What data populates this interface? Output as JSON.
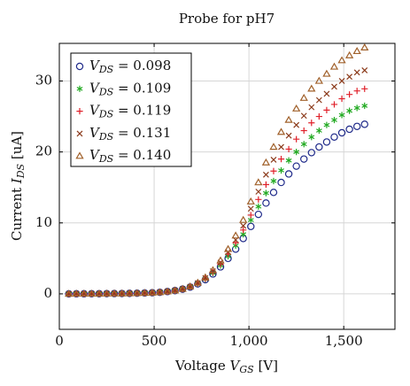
{
  "chart_data": {
    "type": "scatter",
    "title": "Probe for pH7",
    "x_label": "Voltage VGS [V]",
    "y_label": "Current IDS [uA]",
    "x": [
      50,
      90,
      130,
      170,
      210,
      250,
      290,
      330,
      370,
      410,
      450,
      490,
      530,
      570,
      610,
      650,
      690,
      730,
      770,
      810,
      850,
      890,
      930,
      970,
      1010,
      1050,
      1090,
      1130,
      1170,
      1210,
      1250,
      1290,
      1330,
      1370,
      1410,
      1450,
      1490,
      1530,
      1570,
      1610
    ],
    "series": [
      {
        "name": "VDS = 0.098",
        "color": "#1f2a8a",
        "marker": "circle",
        "values": [
          0,
          0.01,
          0.01,
          0.02,
          0.02,
          0.03,
          0.04,
          0.05,
          0.07,
          0.09,
          0.12,
          0.16,
          0.22,
          0.32,
          0.46,
          0.66,
          0.95,
          1.4,
          2.0,
          2.8,
          3.8,
          5.0,
          6.3,
          7.8,
          9.5,
          11.2,
          12.8,
          14.3,
          15.7,
          16.9,
          18.0,
          19.0,
          19.9,
          20.7,
          21.4,
          22.1,
          22.7,
          23.2,
          23.6,
          23.9
        ]
      },
      {
        "name": "VDS = 0.109",
        "color": "#22aa22",
        "marker": "star",
        "values": [
          0,
          0.01,
          0.01,
          0.02,
          0.02,
          0.03,
          0.04,
          0.05,
          0.07,
          0.09,
          0.12,
          0.16,
          0.22,
          0.32,
          0.46,
          0.67,
          0.97,
          1.44,
          2.07,
          2.93,
          4.0,
          5.3,
          6.8,
          8.4,
          10.4,
          12.3,
          14.2,
          15.9,
          17.4,
          18.8,
          20.0,
          21.1,
          22.1,
          23.0,
          23.8,
          24.5,
          25.2,
          25.8,
          26.2,
          26.5
        ]
      },
      {
        "name": "VDS = 0.119",
        "color": "#e0202a",
        "marker": "plus",
        "values": [
          0,
          0.01,
          0.01,
          0.02,
          0.02,
          0.03,
          0.04,
          0.05,
          0.07,
          0.09,
          0.12,
          0.16,
          0.22,
          0.32,
          0.46,
          0.67,
          0.99,
          1.48,
          2.14,
          3.05,
          4.2,
          5.6,
          7.2,
          9.0,
          11.1,
          13.3,
          15.4,
          17.3,
          19.0,
          20.4,
          21.8,
          23.0,
          24.1,
          25.0,
          25.9,
          26.7,
          27.5,
          28.1,
          28.6,
          28.9
        ]
      },
      {
        "name": "VDS = 0.131",
        "color": "#8b3a1a",
        "marker": "cross",
        "values": [
          0,
          0.01,
          0.01,
          0.02,
          0.02,
          0.03,
          0.04,
          0.05,
          0.07,
          0.09,
          0.12,
          0.16,
          0.22,
          0.32,
          0.47,
          0.68,
          1.0,
          1.52,
          2.22,
          3.18,
          4.4,
          5.9,
          7.6,
          9.6,
          12.0,
          14.4,
          16.8,
          18.9,
          20.7,
          22.3,
          23.8,
          25.1,
          26.3,
          27.3,
          28.2,
          29.2,
          30.0,
          30.6,
          31.2,
          31.5
        ]
      },
      {
        "name": "VDS = 0.140",
        "color": "#a0602a",
        "marker": "triangle",
        "values": [
          0,
          0.01,
          0.01,
          0.02,
          0.02,
          0.03,
          0.04,
          0.05,
          0.07,
          0.09,
          0.12,
          0.16,
          0.22,
          0.32,
          0.47,
          0.69,
          1.03,
          1.56,
          2.31,
          3.33,
          4.7,
          6.3,
          8.2,
          10.4,
          13.0,
          15.7,
          18.5,
          20.7,
          22.8,
          24.5,
          26.1,
          27.6,
          28.9,
          30.0,
          31.0,
          32.0,
          32.9,
          33.6,
          34.2,
          34.7
        ]
      }
    ],
    "xlim": [
      0,
      1770
    ],
    "xticks": [
      0,
      500,
      {
        "value": 1000,
        "label": "1,000"
      },
      {
        "value": 1500,
        "label": "1,500"
      }
    ],
    "ylim": [
      -5,
      35.3
    ],
    "yticks": [
      0,
      10,
      20,
      30
    ],
    "grid": true,
    "legend": "upper left"
  }
}
